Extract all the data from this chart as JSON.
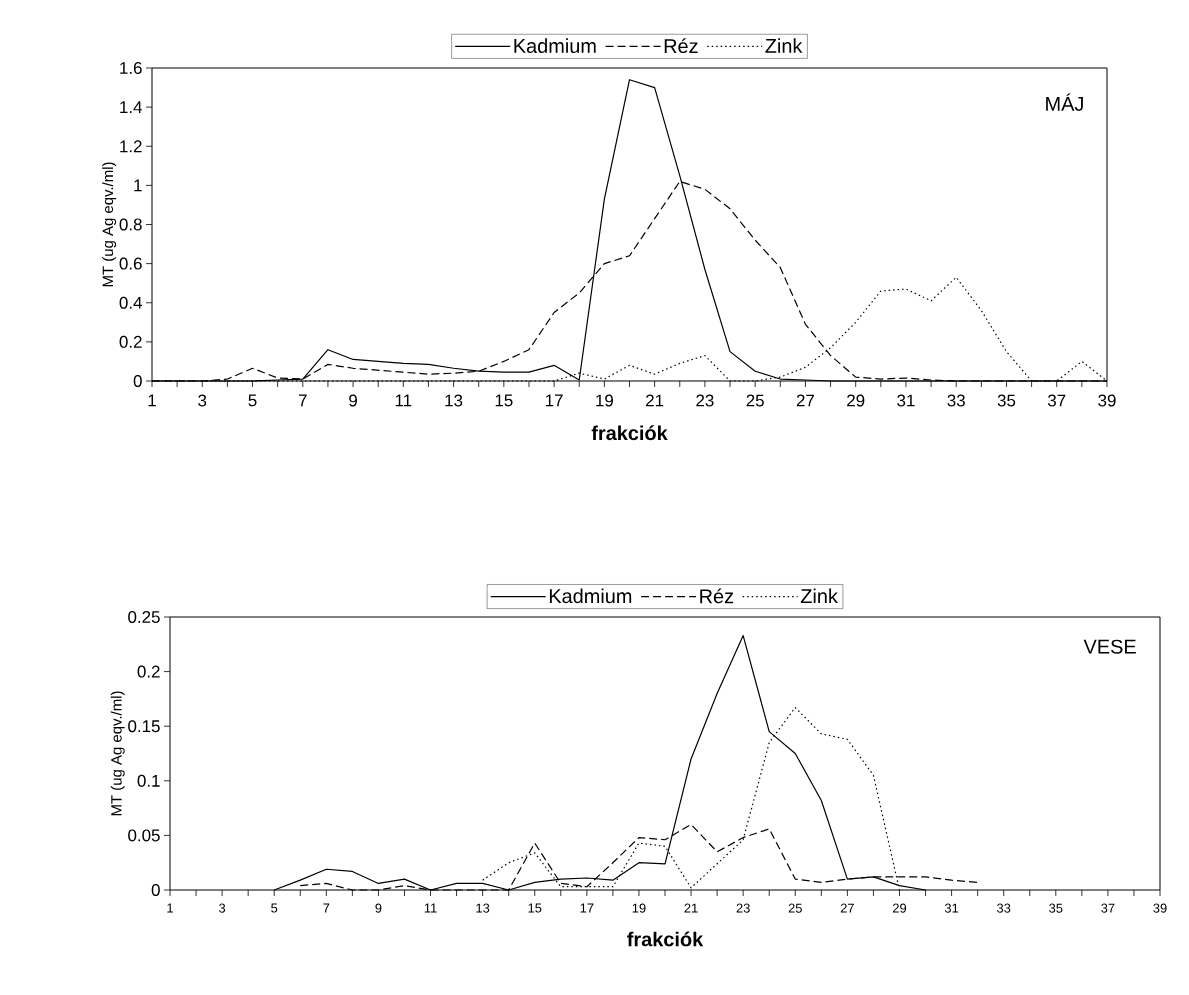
{
  "chart_data": [
    {
      "type": "line",
      "xlabel": "frakciók",
      "ylabel": "MT (ug Ag eqv./ml)",
      "annotations": [
        "MÁJ"
      ],
      "legend": "top",
      "categories": [
        "1",
        null,
        "3",
        null,
        "5",
        null,
        "7",
        null,
        "9",
        null,
        "11",
        null,
        "13",
        null,
        "15",
        null,
        "17",
        null,
        "19",
        null,
        "21",
        null,
        "23",
        null,
        "25",
        null,
        "27",
        null,
        "29",
        null,
        "31",
        null,
        "33",
        null,
        "35",
        null,
        "37",
        null,
        "39"
      ],
      "ylim": [
        0,
        1.6
      ],
      "yticks": [
        0,
        0.2,
        0.4,
        0.6,
        0.8,
        1,
        1.2,
        1.4,
        1.6
      ],
      "series": [
        {
          "name": "Kadmium",
          "color": "#000000",
          "line_style": "solid",
          "values": [
            0,
            0,
            0,
            0,
            0,
            0.005,
            0.01,
            0.16,
            0.11,
            0.1,
            0.09,
            0.085,
            0.065,
            0.05,
            0.045,
            0.045,
            0.08,
            0.005,
            0.93,
            1.54,
            1.5,
            1.05,
            0.57,
            0.15,
            0.05,
            0.01,
            0.005,
            0,
            0,
            0,
            0,
            0,
            0,
            0,
            0,
            0,
            0,
            0,
            0
          ]
        },
        {
          "name": "Réz",
          "color": "#000000",
          "line_style": "dashed",
          "values": [
            0,
            0,
            0,
            0.01,
            0.065,
            0.015,
            0.01,
            0.085,
            0.065,
            0.055,
            0.045,
            0.035,
            0.04,
            0.05,
            0.1,
            0.16,
            0.35,
            0.45,
            0.6,
            0.64,
            0.83,
            1.02,
            0.98,
            0.88,
            0.72,
            0.58,
            0.29,
            0.13,
            0.02,
            0.01,
            0.015,
            0.005,
            0,
            0,
            0,
            0,
            0,
            0,
            0
          ]
        },
        {
          "name": "Zink",
          "color": "#000000",
          "line_style": "dotted",
          "values": [
            0,
            0,
            0,
            0,
            0,
            0,
            0,
            0,
            0,
            0,
            0,
            0,
            0,
            0,
            0,
            0,
            0,
            0.04,
            0.01,
            0.08,
            0.035,
            0.09,
            0.13,
            0,
            0,
            0.02,
            0.07,
            0.17,
            0.3,
            0.46,
            0.47,
            0.41,
            0.53,
            0.36,
            0.15,
            0,
            0,
            0.1,
            0
          ]
        }
      ]
    },
    {
      "type": "line",
      "xlabel": "frakciók",
      "ylabel": "MT (ug Ag eqv./ml)",
      "annotations": [
        "VESE"
      ],
      "legend": "top",
      "categories": [
        "1",
        null,
        "3",
        null,
        "5",
        null,
        "7",
        null,
        "9",
        null,
        "11",
        null,
        "13",
        null,
        "15",
        null,
        "17",
        null,
        "19",
        null,
        "21",
        null,
        "23",
        null,
        "25",
        null,
        "27",
        null,
        "29",
        null,
        "31",
        null,
        "33",
        null,
        "35",
        null,
        "37",
        null,
        "39"
      ],
      "ylim": [
        0,
        0.25
      ],
      "yticks": [
        0,
        0.05,
        0.1,
        0.15,
        0.2,
        0.25
      ],
      "series": [
        {
          "name": "Kadmium",
          "color": "#000000",
          "line_style": "solid",
          "values": [
            null,
            null,
            null,
            null,
            0,
            0.009,
            0.019,
            0.017,
            0.006,
            0.01,
            0,
            0.006,
            0.006,
            0,
            0.007,
            0.01,
            0.011,
            0.009,
            0.025,
            0.024,
            0.12,
            0.18,
            0.233,
            0.145,
            0.125,
            0.082,
            0.01,
            0.012,
            0.004,
            0,
            null,
            null,
            null,
            null,
            null,
            null,
            null,
            null,
            null
          ]
        },
        {
          "name": "Réz",
          "color": "#000000",
          "line_style": "dashed",
          "values": [
            null,
            null,
            null,
            null,
            null,
            0.004,
            0.006,
            0,
            0,
            0.004,
            0,
            0,
            0,
            0,
            0.043,
            0.006,
            0.003,
            0.025,
            0.048,
            0.046,
            0.06,
            0.035,
            0.048,
            0.056,
            0.01,
            0.007,
            0.01,
            0.012,
            0.012,
            0.012,
            0.009,
            0.007,
            null,
            null,
            null,
            null,
            null,
            null,
            null
          ]
        },
        {
          "name": "Zink",
          "color": "#000000",
          "line_style": "dotted",
          "values": [
            null,
            null,
            null,
            null,
            null,
            null,
            null,
            null,
            null,
            null,
            null,
            null,
            0.009,
            0.025,
            0.034,
            0.003,
            0.003,
            0.003,
            0.043,
            0.04,
            0.002,
            0.024,
            0.046,
            0.135,
            0.167,
            0.143,
            0.138,
            0.105,
            0,
            null,
            null,
            null,
            null,
            null,
            null,
            null,
            null,
            null,
            null
          ]
        }
      ]
    }
  ]
}
